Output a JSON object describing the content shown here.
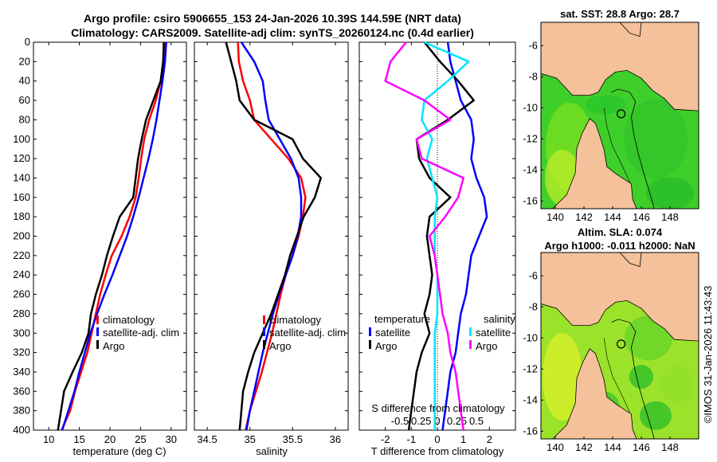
{
  "title": {
    "line1": "Argo profile: csiro 5906655_153 24-Jan-2026 10.39S 144.59E (NRT data)",
    "line2": "Climatology: CARS2009. Satellite-adj clim: synTS_20260124.nc (0.4d earlier)"
  },
  "colors": {
    "climatology": "#ff0000",
    "satellite": "#0000ff",
    "argo": "#000000",
    "sat_salinity": "#00e5ff",
    "argo_salinity": "#ff00ff",
    "land": "#f4c19a"
  },
  "credit": "©IMOS 31-Jan-2026 11:43:43",
  "chart_data": [
    {
      "type": "line",
      "id": "temperature",
      "xlabel": "temperature (deg C)",
      "xlim": [
        7.5,
        32.5
      ],
      "xticks": [
        "10",
        "15",
        "20",
        "25",
        "30"
      ],
      "ylim": [
        0,
        400
      ],
      "yticks": [
        "0",
        "20",
        "40",
        "60",
        "80",
        "100",
        "120",
        "140",
        "160",
        "180",
        "200",
        "220",
        "240",
        "260",
        "280",
        "300",
        "320",
        "340",
        "360",
        "380",
        "400"
      ],
      "legend": [
        "climatology",
        "satellite-adj. clim",
        "Argo"
      ],
      "series": [
        {
          "name": "climatology",
          "color": "#ff0000",
          "x": [
            28.9,
            28.7,
            28.3,
            27.5,
            26.4,
            25.6,
            25.1,
            24.7,
            24.2,
            23.2,
            21.9,
            20.3,
            19.3,
            18.4,
            17.7,
            17.0,
            16.3,
            15.3,
            14.3,
            13.5,
            12.1
          ],
          "y": [
            0,
            20,
            40,
            60,
            80,
            100,
            120,
            140,
            160,
            180,
            200,
            220,
            240,
            260,
            280,
            300,
            320,
            340,
            360,
            380,
            400
          ]
        },
        {
          "name": "satellite",
          "color": "#0000ff",
          "x": [
            29.2,
            29.0,
            28.6,
            28.1,
            27.6,
            27.0,
            26.3,
            25.5,
            24.7,
            23.8,
            22.8,
            21.6,
            20.4,
            19.1,
            17.9,
            16.8,
            15.9,
            15.0,
            14.2,
            13.2,
            12.2
          ],
          "y": [
            0,
            20,
            40,
            60,
            80,
            100,
            120,
            140,
            160,
            180,
            200,
            220,
            240,
            260,
            280,
            300,
            320,
            340,
            360,
            380,
            400
          ]
        },
        {
          "name": "Argo",
          "color": "#000000",
          "x": [
            28.8,
            28.7,
            28.3,
            27.1,
            25.9,
            25.2,
            24.6,
            24.2,
            23.8,
            21.6,
            20.5,
            19.5,
            18.7,
            17.7,
            16.9,
            16.5,
            15.4,
            13.9,
            12.5,
            12.0,
            11.5
          ],
          "y": [
            0,
            20,
            40,
            60,
            80,
            100,
            120,
            140,
            160,
            180,
            200,
            220,
            240,
            260,
            280,
            300,
            320,
            340,
            360,
            380,
            400
          ]
        }
      ]
    },
    {
      "type": "line",
      "id": "salinity",
      "xlabel": "salinity",
      "xlim": [
        34.35,
        36.15
      ],
      "xticks": [
        "34.5",
        "35",
        "35.5",
        "36"
      ],
      "ylim": [
        0,
        400
      ],
      "legend": [
        "climatology",
        "satellite-adj. clim",
        "Argo"
      ],
      "series": [
        {
          "name": "climatology",
          "color": "#ff0000",
          "x": [
            34.86,
            34.87,
            34.92,
            35.0,
            35.05,
            35.25,
            35.45,
            35.6,
            35.65,
            35.62,
            35.57,
            35.5,
            35.42,
            35.36,
            35.31,
            35.26,
            35.2,
            35.14,
            35.07,
            35.0,
            34.95
          ],
          "y": [
            0,
            20,
            40,
            60,
            80,
            100,
            120,
            140,
            160,
            180,
            200,
            220,
            240,
            260,
            280,
            300,
            320,
            340,
            360,
            380,
            400
          ]
        },
        {
          "name": "satellite",
          "color": "#0000ff",
          "x": [
            34.9,
            35.05,
            35.15,
            35.18,
            35.22,
            35.35,
            35.48,
            35.57,
            35.6,
            35.6,
            35.56,
            35.5,
            35.42,
            35.34,
            35.27,
            35.21,
            35.15,
            35.1,
            35.05,
            35.0,
            34.96
          ],
          "y": [
            0,
            20,
            40,
            60,
            80,
            100,
            120,
            140,
            160,
            180,
            200,
            220,
            240,
            260,
            280,
            300,
            320,
            340,
            360,
            380,
            400
          ]
        },
        {
          "name": "Argo",
          "color": "#000000",
          "x": [
            34.72,
            34.78,
            34.84,
            34.88,
            35.05,
            35.5,
            35.62,
            35.83,
            35.76,
            35.63,
            35.55,
            35.47,
            35.41,
            35.33,
            35.25,
            35.15,
            35.05,
            34.98,
            34.92,
            34.9,
            34.88
          ],
          "y": [
            0,
            20,
            40,
            60,
            80,
            100,
            120,
            140,
            160,
            180,
            200,
            220,
            240,
            260,
            280,
            300,
            320,
            340,
            360,
            380,
            400
          ]
        }
      ]
    },
    {
      "type": "line",
      "id": "difference",
      "xlabel": "T difference from climatology",
      "xlim": [
        -3,
        3
      ],
      "xticks": [
        "-2",
        "-1",
        "0",
        "1",
        "2"
      ],
      "top_xlabel": "S difference from climatology",
      "top_xticks": [
        "-0.5",
        "-0.25",
        "0",
        "0.25",
        "0.5"
      ],
      "ylim": [
        0,
        400
      ],
      "legend_temperature": {
        "heading": "temperature",
        "items": [
          "satellite",
          "Argo"
        ]
      },
      "legend_salinity": {
        "heading": "salinity",
        "items": [
          "satellite",
          "Argo"
        ]
      },
      "series": [
        {
          "name": "temperature satellite",
          "color": "#0000ff",
          "x": [
            0.4,
            0.5,
            0.7,
            0.9,
            1.3,
            1.4,
            1.3,
            1.5,
            1.8,
            1.9,
            1.6,
            1.3,
            1.2,
            1.1,
            0.9,
            0.8,
            0.7,
            0.5,
            0.4,
            0.3,
            0.2
          ],
          "y": [
            0,
            20,
            40,
            60,
            80,
            100,
            120,
            140,
            160,
            180,
            200,
            220,
            240,
            260,
            280,
            300,
            320,
            340,
            360,
            380,
            400
          ]
        },
        {
          "name": "temperature Argo",
          "color": "#000000",
          "x": [
            -0.5,
            0.1,
            0.8,
            1.4,
            0.4,
            -0.8,
            -0.7,
            -0.3,
            0.5,
            -0.3,
            -0.4,
            -0.3,
            -0.2,
            -0.3,
            -0.5,
            -0.3,
            -0.6,
            -0.8,
            -0.9,
            -1.0,
            -1.1
          ],
          "y": [
            0,
            20,
            40,
            60,
            80,
            100,
            120,
            140,
            160,
            180,
            200,
            220,
            240,
            260,
            280,
            300,
            320,
            340,
            360,
            380,
            400
          ]
        },
        {
          "name": "salinity satellite",
          "color": "#00e5ff",
          "x": [
            -0.5,
            1.2,
            0.4,
            -0.5,
            -0.6,
            -0.2,
            -0.4,
            -0.2,
            0.0,
            -0.1,
            -0.1,
            -0.1,
            0.0,
            0.0,
            0.0,
            -0.1,
            -0.1,
            -0.1,
            -0.1,
            -0.1,
            -0.1
          ],
          "y": [
            0,
            20,
            40,
            60,
            80,
            100,
            120,
            140,
            160,
            180,
            200,
            220,
            240,
            260,
            280,
            300,
            320,
            340,
            360,
            380,
            400
          ]
        },
        {
          "name": "salinity Argo",
          "color": "#ff00ff",
          "x": [
            -1.2,
            -1.8,
            -2.0,
            -0.5,
            0.5,
            -0.8,
            -0.6,
            1.0,
            0.8,
            0.3,
            -0.3,
            -0.1,
            0.0,
            0.1,
            0.2,
            0.4,
            0.5,
            0.7,
            0.8,
            0.9,
            1.0
          ],
          "y": [
            0,
            20,
            40,
            60,
            80,
            100,
            120,
            140,
            160,
            180,
            200,
            220,
            240,
            260,
            280,
            300,
            320,
            340,
            360,
            380,
            400
          ]
        }
      ]
    },
    {
      "type": "heatmap",
      "id": "sst_map",
      "title": "sat. SST: 28.8 Argo: 28.7",
      "xlim": [
        139.0,
        150.0
      ],
      "ylim": [
        -16.5,
        -4.5
      ],
      "xticks": [
        "140",
        "142",
        "144",
        "146",
        "148"
      ],
      "yticks": [
        "-6",
        "-8",
        "-10",
        "-12",
        "-14",
        "-16"
      ],
      "float_position": {
        "lon": 144.59,
        "lat": -10.39
      }
    },
    {
      "type": "heatmap",
      "id": "sla_map",
      "title": "Altim. SLA: 0.074",
      "subtitle": "Argo h1000: -0.011 h2000: NaN",
      "xlim": [
        139.0,
        150.0
      ],
      "ylim": [
        -16.5,
        -4.5
      ],
      "xticks": [
        "140",
        "142",
        "144",
        "146",
        "148"
      ],
      "yticks": [
        "-6",
        "-8",
        "-10",
        "-12",
        "-14",
        "-16"
      ],
      "float_position": {
        "lon": 144.59,
        "lat": -10.39
      }
    }
  ]
}
